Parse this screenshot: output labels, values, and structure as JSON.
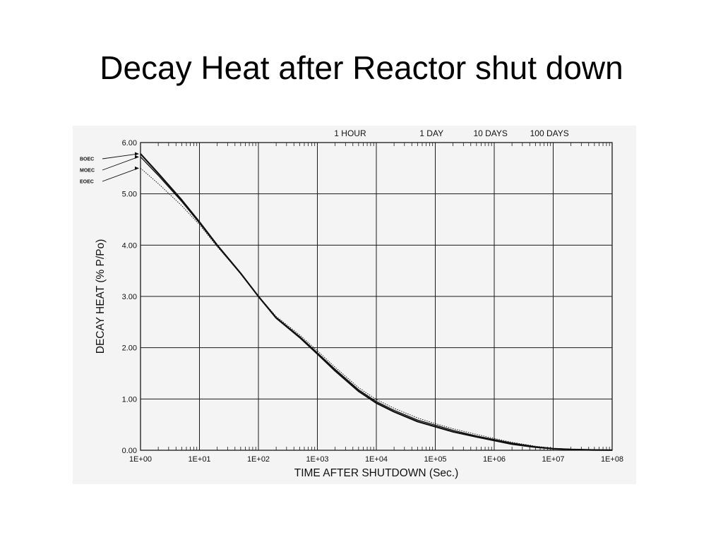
{
  "slide": {
    "title": "Decay Heat after Reactor shut down"
  },
  "colors": {
    "grid": "#1a1a1a",
    "curve": "#111111",
    "background": "#f4f4f4"
  },
  "chart_data": {
    "type": "line",
    "title": "",
    "xlabel": "TIME AFTER SHUTDOWN (Sec.)",
    "ylabel": "DECAY HEAT (% P/Po)",
    "x_scale": "log",
    "xlim": [
      1,
      100000000
    ],
    "ylim": [
      0,
      6
    ],
    "grid": true,
    "x_ticks": [
      {
        "value": 1,
        "label": "1E+00"
      },
      {
        "value": 10,
        "label": "1E+01"
      },
      {
        "value": 100,
        "label": "1E+02"
      },
      {
        "value": 1000,
        "label": "1E+03"
      },
      {
        "value": 10000,
        "label": "1E+04"
      },
      {
        "value": 100000,
        "label": "1E+05"
      },
      {
        "value": 1000000,
        "label": "1E+06"
      },
      {
        "value": 10000000,
        "label": "1E+07"
      },
      {
        "value": 100000000,
        "label": "1E+08"
      }
    ],
    "y_ticks": [
      {
        "value": 0,
        "label": "0.00"
      },
      {
        "value": 1,
        "label": "1.00"
      },
      {
        "value": 2,
        "label": "2.00"
      },
      {
        "value": 3,
        "label": "3.00"
      },
      {
        "value": 4,
        "label": "4.00"
      },
      {
        "value": 5,
        "label": "5.00"
      },
      {
        "value": 6,
        "label": "6.00"
      }
    ],
    "top_markers": [
      {
        "value": 3600,
        "label": "1 HOUR"
      },
      {
        "value": 86400,
        "label": "1 DAY"
      },
      {
        "value": 864000,
        "label": "10 DAYS"
      },
      {
        "value": 8640000,
        "label": "100 DAYS"
      }
    ],
    "series": [
      {
        "name": "BOEC",
        "x": [
          1,
          2,
          5,
          10,
          20,
          50,
          100,
          200,
          500,
          1000,
          2000,
          5000,
          10000,
          20000,
          50000,
          100000,
          200000,
          500000,
          1000000,
          2000000,
          5000000,
          10000000,
          20000000,
          50000000,
          100000000
        ],
        "y": [
          5.78,
          5.4,
          4.88,
          4.45,
          4.0,
          3.45,
          3.0,
          2.58,
          2.2,
          1.88,
          1.55,
          1.15,
          0.92,
          0.75,
          0.56,
          0.46,
          0.36,
          0.26,
          0.19,
          0.12,
          0.06,
          0.03,
          0.015,
          0.006,
          0.003
        ]
      },
      {
        "name": "MOEC",
        "x": [
          1,
          2,
          5,
          10,
          20,
          50,
          100,
          200,
          500,
          1000,
          2000,
          5000,
          10000,
          20000,
          50000,
          100000,
          200000,
          500000,
          1000000,
          2000000,
          5000000,
          10000000,
          20000000,
          50000000,
          100000000
        ],
        "y": [
          5.72,
          5.36,
          4.85,
          4.43,
          3.99,
          3.44,
          3.0,
          2.59,
          2.22,
          1.9,
          1.58,
          1.18,
          0.95,
          0.78,
          0.59,
          0.49,
          0.39,
          0.28,
          0.21,
          0.14,
          0.07,
          0.035,
          0.018,
          0.007,
          0.003
        ]
      },
      {
        "name": "EOEC",
        "x": [
          1,
          2,
          5,
          10,
          20,
          50,
          100,
          200,
          500,
          1000,
          2000,
          5000,
          10000,
          20000,
          50000,
          100000,
          200000,
          500000,
          1000000,
          2000000,
          5000000,
          10000000,
          20000000,
          50000000,
          100000000
        ],
        "y": [
          5.5,
          5.2,
          4.77,
          4.4,
          3.97,
          3.44,
          3.01,
          2.61,
          2.25,
          1.94,
          1.62,
          1.22,
          0.99,
          0.82,
          0.63,
          0.52,
          0.42,
          0.31,
          0.23,
          0.155,
          0.08,
          0.04,
          0.02,
          0.008,
          0.004
        ]
      }
    ]
  }
}
